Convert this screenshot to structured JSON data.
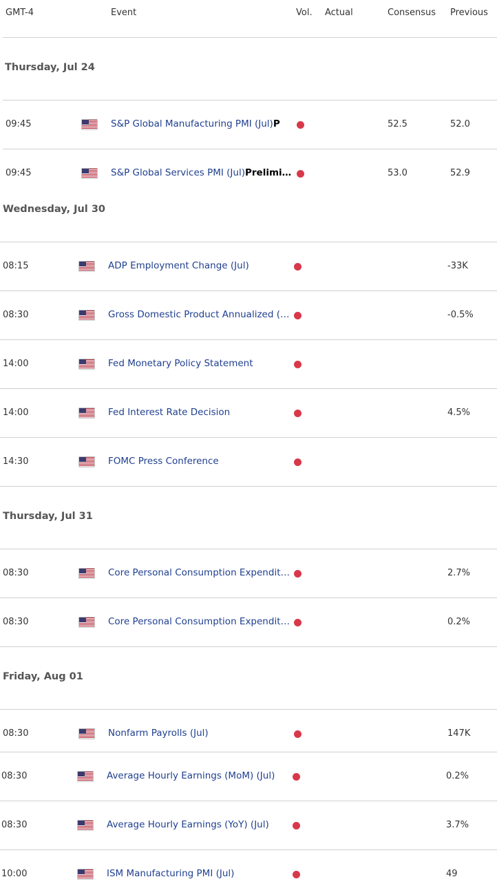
{
  "header": {
    "timezone": "GMT-4",
    "event": "Event",
    "volatility": "Vol.",
    "actual": "Actual",
    "consensus": "Consensus",
    "previous": "Previous"
  },
  "colors": {
    "volatility_high": "#d8384a",
    "event_link": "#1f3f8f"
  },
  "days": [
    {
      "label": "Thursday, Jul 24",
      "events": [
        {
          "time": "09:45",
          "flag": "us-flag-icon",
          "name": "S&P Global Manufacturing PMI (Jul)",
          "tag": "P",
          "volatility": "high",
          "actual": "",
          "consensus": "52.5",
          "previous": "52.0"
        },
        {
          "time": "09:45",
          "flag": "us-flag-icon",
          "name": "S&P Global Services PMI (Jul)",
          "tag": "Prelimi…",
          "volatility": "high",
          "actual": "",
          "consensus": "53.0",
          "previous": "52.9"
        }
      ]
    },
    {
      "label": "Wednesday, Jul 30",
      "events": [
        {
          "time": "08:15",
          "flag": "us-flag-icon",
          "name": "ADP Employment Change (Jul)",
          "tag": "",
          "volatility": "high",
          "actual": "",
          "consensus": "",
          "previous": "-33K"
        },
        {
          "time": "08:30",
          "flag": "us-flag-icon",
          "name": "Gross Domestic Product Annualized (…",
          "tag": "",
          "volatility": "high",
          "actual": "",
          "consensus": "",
          "previous": "-0.5%"
        },
        {
          "time": "14:00",
          "flag": "us-flag-icon",
          "name": "Fed Monetary Policy Statement",
          "tag": "",
          "volatility": "high",
          "actual": "",
          "consensus": "",
          "previous": ""
        },
        {
          "time": "14:00",
          "flag": "us-flag-icon",
          "name": "Fed Interest Rate Decision",
          "tag": "",
          "volatility": "high",
          "actual": "",
          "consensus": "",
          "previous": "4.5%"
        },
        {
          "time": "14:30",
          "flag": "us-flag-icon",
          "name": "FOMC Press Conference",
          "tag": "",
          "volatility": "high",
          "actual": "",
          "consensus": "",
          "previous": ""
        }
      ]
    },
    {
      "label": "Thursday, Jul 31",
      "events": [
        {
          "time": "08:30",
          "flag": "us-flag-icon",
          "name": "Core Personal Consumption Expendit…",
          "tag": "",
          "volatility": "high",
          "actual": "",
          "consensus": "",
          "previous": "2.7%"
        },
        {
          "time": "08:30",
          "flag": "us-flag-icon",
          "name": "Core Personal Consumption Expendit…",
          "tag": "",
          "volatility": "high",
          "actual": "",
          "consensus": "",
          "previous": "0.2%"
        }
      ]
    },
    {
      "label": "Friday, Aug 01",
      "events": [
        {
          "time": "08:30",
          "flag": "us-flag-icon",
          "name": "Nonfarm Payrolls (Jul)",
          "tag": "",
          "volatility": "high",
          "actual": "",
          "consensus": "",
          "previous": "147K"
        },
        {
          "time": "08:30",
          "flag": "us-flag-icon",
          "name": "Average Hourly Earnings (MoM) (Jul)",
          "tag": "",
          "volatility": "high",
          "actual": "",
          "consensus": "",
          "previous": "0.2%"
        },
        {
          "time": "08:30",
          "flag": "us-flag-icon",
          "name": "Average Hourly Earnings (YoY) (Jul)",
          "tag": "",
          "volatility": "high",
          "actual": "",
          "consensus": "",
          "previous": "3.7%"
        },
        {
          "time": "10:00",
          "flag": "us-flag-icon",
          "name": "ISM Manufacturing PMI (Jul)",
          "tag": "",
          "volatility": "high",
          "actual": "",
          "consensus": "",
          "previous": "49"
        }
      ]
    }
  ]
}
